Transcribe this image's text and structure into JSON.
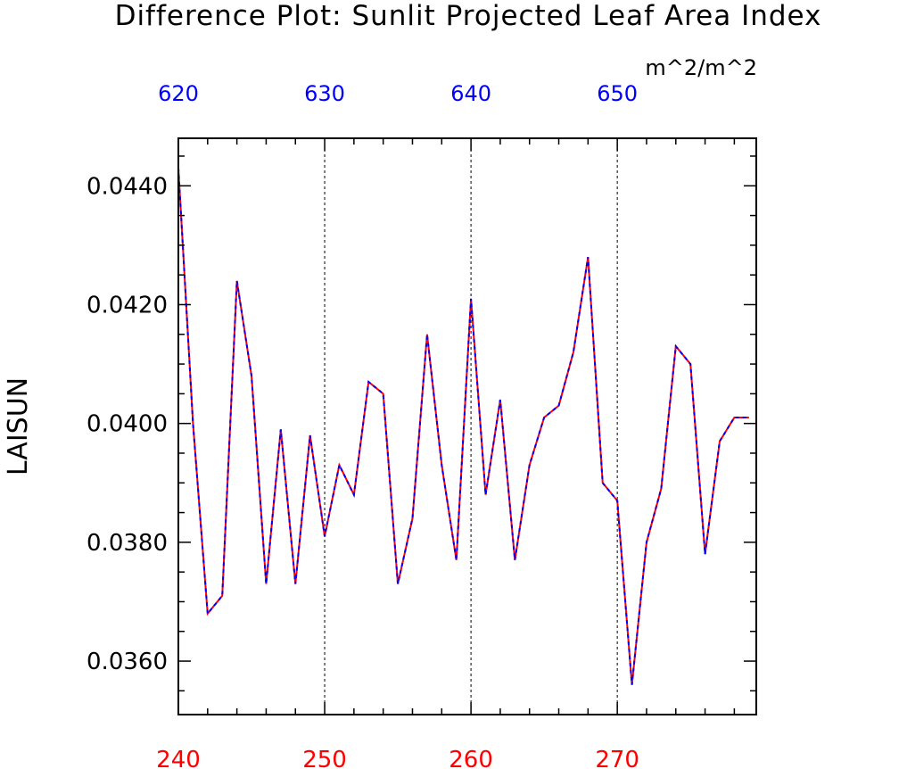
{
  "chart_data": {
    "type": "line",
    "title": "Difference Plot: Sunlit Projected Leaf Area Index",
    "units": "m^2/m^2",
    "ylabel": "LAISUN",
    "xlabel": "",
    "xlim": [
      240,
      279.5
    ],
    "ylim": [
      0.0351,
      0.0448
    ],
    "x_ticks_bottom": [
      240,
      250,
      260,
      270
    ],
    "x_ticks_top": [
      {
        "label": "620",
        "at": 240
      },
      {
        "label": "630",
        "at": 250
      },
      {
        "label": "640",
        "at": 260
      },
      {
        "label": "650",
        "at": 270
      }
    ],
    "y_ticks": [
      {
        "value": 0.036,
        "label": "0.0360"
      },
      {
        "value": 0.038,
        "label": "0.0380"
      },
      {
        "value": 0.04,
        "label": "0.0400"
      },
      {
        "value": 0.042,
        "label": "0.0420"
      },
      {
        "value": 0.044,
        "label": "0.0440"
      }
    ],
    "x_gridlines": [
      250,
      260,
      270
    ],
    "x": [
      240,
      241,
      242,
      243,
      244,
      245,
      246,
      247,
      248,
      249,
      250,
      251,
      252,
      253,
      254,
      255,
      256,
      257,
      258,
      259,
      260,
      261,
      262,
      263,
      264,
      265,
      266,
      267,
      268,
      269,
      270,
      271,
      272,
      273,
      274,
      275,
      276,
      277,
      278,
      279
    ],
    "series": [
      {
        "color": "#ff0000",
        "style": "solid",
        "values": [
          0.0443,
          0.04,
          0.0368,
          0.0371,
          0.0424,
          0.0408,
          0.0373,
          0.0399,
          0.0373,
          0.0398,
          0.0381,
          0.0393,
          0.0388,
          0.0407,
          0.0405,
          0.0373,
          0.0384,
          0.0415,
          0.0393,
          0.0377,
          0.0421,
          0.0388,
          0.0404,
          0.0377,
          0.0393,
          0.0401,
          0.0403,
          0.0412,
          0.0428,
          0.039,
          0.0387,
          0.0356,
          0.038,
          0.0389,
          0.0413,
          0.041,
          0.0378,
          0.0397,
          0.0401,
          0.0401
        ]
      },
      {
        "color": "#0000ff",
        "style": "dashed",
        "values": [
          0.0443,
          0.04,
          0.0368,
          0.0371,
          0.0424,
          0.0408,
          0.0373,
          0.0399,
          0.0373,
          0.0398,
          0.0381,
          0.0393,
          0.0388,
          0.0407,
          0.0405,
          0.0373,
          0.0384,
          0.0415,
          0.0393,
          0.0377,
          0.0421,
          0.0388,
          0.0404,
          0.0377,
          0.0393,
          0.0401,
          0.0403,
          0.0412,
          0.0428,
          0.039,
          0.0387,
          0.0356,
          0.038,
          0.0389,
          0.0413,
          0.041,
          0.0378,
          0.0397,
          0.0401,
          0.0401
        ]
      }
    ],
    "grid": "x-only dashed",
    "legend": "none"
  }
}
